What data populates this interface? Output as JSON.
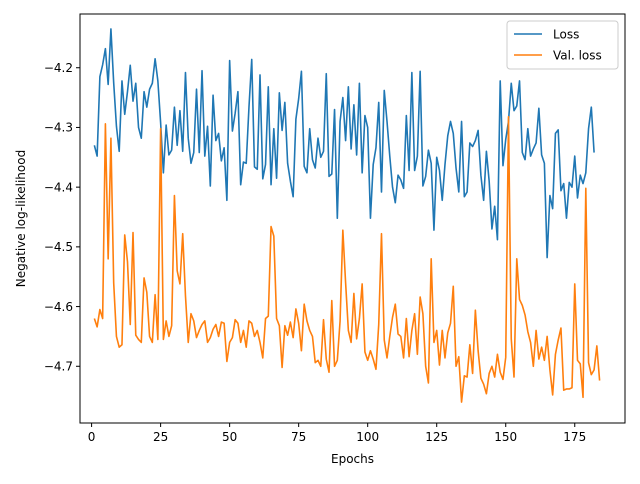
{
  "chart_data": {
    "type": "line",
    "title": "",
    "xlabel": "Epochs",
    "ylabel": "Negative log-likelihood",
    "xlim": [
      -4.2,
      193.2
    ],
    "ylim": [
      -4.795,
      -4.11
    ],
    "xticks": [
      0,
      25,
      50,
      75,
      100,
      125,
      150,
      175
    ],
    "xtick_labels": [
      "0",
      "25",
      "50",
      "75",
      "100",
      "125",
      "150",
      "175"
    ],
    "yticks": [
      -4.2,
      -4.3,
      -4.4,
      -4.5,
      -4.6,
      -4.7
    ],
    "ytick_labels": [
      "−4.2",
      "−4.3",
      "−4.4",
      "−4.5",
      "−4.6",
      "−4.7"
    ],
    "grid": false,
    "legend_position": "top-right",
    "x_start": 1,
    "series": [
      {
        "name": "Loss",
        "color": "#1f77b4",
        "values": [
          -4.33,
          -4.348,
          -4.215,
          -4.195,
          -4.168,
          -4.228,
          -4.135,
          -4.225,
          -4.298,
          -4.34,
          -4.222,
          -4.278,
          -4.24,
          -4.196,
          -4.256,
          -4.226,
          -4.3,
          -4.318,
          -4.24,
          -4.266,
          -4.236,
          -4.226,
          -4.185,
          -4.222,
          -4.292,
          -4.376,
          -4.296,
          -4.346,
          -4.338,
          -4.266,
          -4.33,
          -4.272,
          -4.34,
          -4.208,
          -4.318,
          -4.36,
          -4.342,
          -4.236,
          -4.342,
          -4.205,
          -4.348,
          -4.298,
          -4.398,
          -4.246,
          -4.322,
          -4.31,
          -4.356,
          -4.334,
          -4.422,
          -4.188,
          -4.306,
          -4.276,
          -4.24,
          -4.396,
          -4.358,
          -4.36,
          -4.266,
          -4.186,
          -4.366,
          -4.37,
          -4.212,
          -4.386,
          -4.362,
          -4.232,
          -4.396,
          -4.302,
          -4.385,
          -4.242,
          -4.305,
          -4.258,
          -4.36,
          -4.39,
          -4.416,
          -4.286,
          -4.252,
          -4.206,
          -4.365,
          -4.376,
          -4.302,
          -4.354,
          -4.368,
          -4.318,
          -4.35,
          -4.34,
          -4.21,
          -4.382,
          -4.378,
          -4.27,
          -4.452,
          -4.29,
          -4.25,
          -4.322,
          -4.232,
          -4.336,
          -4.262,
          -4.346,
          -4.226,
          -4.376,
          -4.28,
          -4.3,
          -4.452,
          -4.362,
          -4.334,
          -4.258,
          -4.408,
          -4.238,
          -4.29,
          -4.348,
          -4.4,
          -4.426,
          -4.38,
          -4.388,
          -4.402,
          -4.28,
          -4.372,
          -4.208,
          -4.372,
          -4.348,
          -4.206,
          -4.398,
          -4.382,
          -4.338,
          -4.36,
          -4.472,
          -4.35,
          -4.372,
          -4.422,
          -4.362,
          -4.314,
          -4.29,
          -4.31,
          -4.368,
          -4.408,
          -4.29,
          -4.416,
          -4.408,
          -4.326,
          -4.332,
          -4.322,
          -4.305,
          -4.38,
          -4.422,
          -4.34,
          -4.39,
          -4.47,
          -4.432,
          -4.488,
          -4.222,
          -4.364,
          -4.32,
          -4.29,
          -4.226,
          -4.272,
          -4.264,
          -4.222,
          -4.342,
          -4.354,
          -4.302,
          -4.348,
          -4.336,
          -4.326,
          -4.268,
          -4.346,
          -4.36,
          -4.518,
          -4.414,
          -4.436,
          -4.31,
          -4.304,
          -4.406,
          -4.394,
          -4.452,
          -4.392,
          -4.4,
          -4.348,
          -4.418,
          -4.38,
          -4.394,
          -4.376,
          -4.302,
          -4.266,
          -4.342
        ]
      },
      {
        "name": "Val. loss",
        "color": "#ff7f0e",
        "values": [
          -4.62,
          -4.634,
          -4.605,
          -4.62,
          -4.294,
          -4.52,
          -4.318,
          -4.56,
          -4.65,
          -4.668,
          -4.664,
          -4.48,
          -4.525,
          -4.63,
          -4.476,
          -4.648,
          -4.655,
          -4.66,
          -4.552,
          -4.576,
          -4.65,
          -4.66,
          -4.58,
          -4.655,
          -4.302,
          -4.655,
          -4.624,
          -4.65,
          -4.632,
          -4.414,
          -4.54,
          -4.562,
          -4.478,
          -4.582,
          -4.66,
          -4.612,
          -4.624,
          -4.652,
          -4.64,
          -4.63,
          -4.624,
          -4.66,
          -4.652,
          -4.638,
          -4.63,
          -4.65,
          -4.626,
          -4.628,
          -4.692,
          -4.66,
          -4.652,
          -4.622,
          -4.628,
          -4.66,
          -4.64,
          -4.668,
          -4.624,
          -4.628,
          -4.65,
          -4.64,
          -4.66,
          -4.686,
          -4.62,
          -4.616,
          -4.466,
          -4.482,
          -4.62,
          -4.632,
          -4.702,
          -4.632,
          -4.648,
          -4.626,
          -4.652,
          -4.604,
          -4.628,
          -4.674,
          -4.596,
          -4.624,
          -4.64,
          -4.65,
          -4.694,
          -4.69,
          -4.7,
          -4.622,
          -4.688,
          -4.71,
          -4.59,
          -4.7,
          -4.69,
          -4.624,
          -4.472,
          -4.56,
          -4.64,
          -4.66,
          -4.578,
          -4.654,
          -4.62,
          -4.562,
          -4.676,
          -4.69,
          -4.674,
          -4.688,
          -4.705,
          -4.63,
          -4.478,
          -4.656,
          -4.686,
          -4.65,
          -4.618,
          -4.596,
          -4.646,
          -4.65,
          -4.686,
          -4.62,
          -4.684,
          -4.64,
          -4.612,
          -4.68,
          -4.584,
          -4.612,
          -4.7,
          -4.728,
          -4.52,
          -4.66,
          -4.64,
          -4.698,
          -4.64,
          -4.686,
          -4.644,
          -4.628,
          -4.566,
          -4.7,
          -4.684,
          -4.76,
          -4.716,
          -4.718,
          -4.664,
          -4.712,
          -4.606,
          -4.674,
          -4.72,
          -4.73,
          -4.746,
          -4.712,
          -4.7,
          -4.718,
          -4.68,
          -4.71,
          -4.722,
          -4.685,
          -4.282,
          -4.654,
          -4.718,
          -4.52,
          -4.588,
          -4.598,
          -4.614,
          -4.642,
          -4.66,
          -4.7,
          -4.64,
          -4.688,
          -4.668,
          -4.69,
          -4.65,
          -4.706,
          -4.748,
          -4.68,
          -4.656,
          -4.636,
          -4.74,
          -4.738,
          -4.738,
          -4.736,
          -4.562,
          -4.69,
          -4.696,
          -4.752,
          -4.402,
          -4.694,
          -4.714,
          -4.706,
          -4.666,
          -4.724
        ]
      }
    ]
  }
}
